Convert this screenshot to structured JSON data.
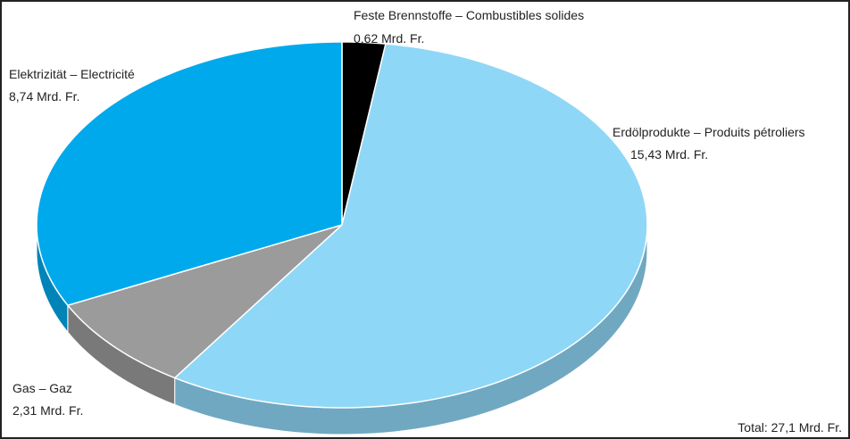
{
  "chart_data": {
    "type": "pie",
    "categories": [
      "Feste Brennstoffe – Combustibles solides",
      "Erdölprodukte – Produits pétroliers",
      "Gas – Gaz",
      "Elektrizität – Electricité"
    ],
    "values": [
      0.62,
      15.43,
      2.31,
      8.74
    ],
    "value_labels": [
      "0,62 Mrd. Fr.",
      "15,43 Mrd. Fr.",
      "2,31 Mrd. Fr.",
      "8,74 Mrd. Fr."
    ],
    "colors": [
      "#000000",
      "#8fd7f7",
      "#9b9b9b",
      "#00a9ec"
    ],
    "annotation": "Total: 27,1 Mrd. Fr."
  }
}
